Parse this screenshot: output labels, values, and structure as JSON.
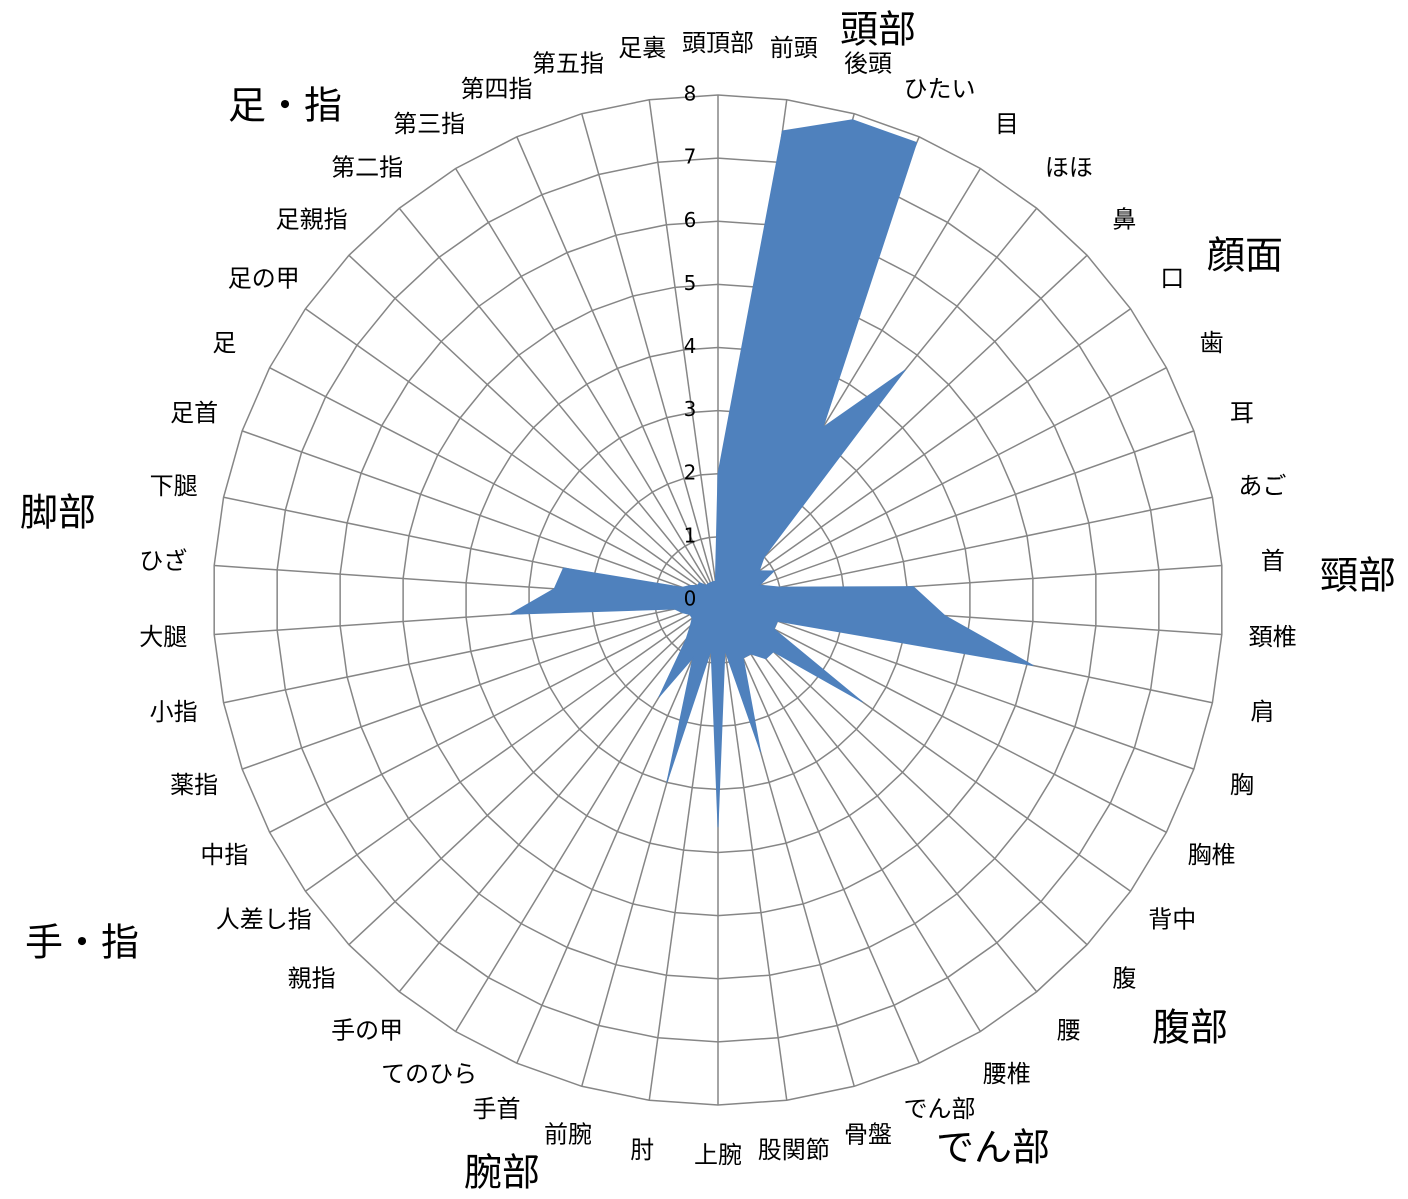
{
  "chart_data": {
    "type": "radar",
    "categories": [
      "頭頂部",
      "前頭",
      "後頭",
      "ひたい",
      "目",
      "ほほ",
      "鼻",
      "口",
      "歯",
      "耳",
      "あご",
      "首",
      "頚椎",
      "肩",
      "胸",
      "胸椎",
      "背中",
      "腹",
      "腰",
      "腰椎",
      "でん部",
      "骨盤",
      "股関節",
      "上腕",
      "肘",
      "前腕",
      "手首",
      "てのひら",
      "手の甲",
      "親指",
      "人差し指",
      "中指",
      "薬指",
      "小指",
      "大腿",
      "ひざ",
      "下腿",
      "足首",
      "足",
      "足の甲",
      "足親指",
      "第二指",
      "第三指",
      "第四指",
      "第五指",
      "足裏"
    ],
    "values": [
      2,
      7.5,
      7.9,
      7.9,
      3.2,
      4.7,
      1.0,
      0.8,
      1.0,
      0.7,
      1.0,
      3.1,
      3.6,
      5.1,
      1.0,
      1.0,
      2.8,
      1.2,
      1.2,
      1.0,
      1.0,
      2.5,
      0.8,
      3.6,
      0.8,
      3.0,
      1.0,
      1.8,
      0.8,
      0.6,
      0.5,
      0.5,
      0.6,
      0.7,
      3.3,
      2.6,
      2.5,
      0.6,
      0.5,
      0.4,
      0.4,
      0.3,
      0.3,
      0.3,
      0.3,
      0.3
    ],
    "color": "#4f81bd",
    "rlim": [
      0,
      8
    ],
    "rticks": [
      0,
      1,
      2,
      3,
      4,
      5,
      6,
      7,
      8
    ],
    "grid": true,
    "group_labels": [
      "頭部",
      "顔面",
      "頸部",
      "腹部",
      "でん部",
      "腕部",
      "手・指",
      "脚部",
      "足・指"
    ]
  }
}
